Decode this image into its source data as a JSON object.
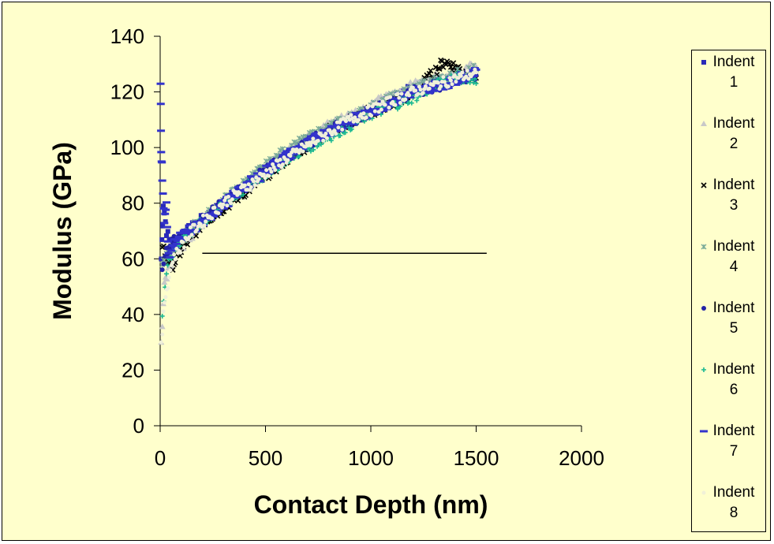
{
  "chart_data": {
    "type": "scatter",
    "title": "",
    "xlabel": "Contact Depth (nm)",
    "ylabel": "Modulus (GPa)",
    "xlim": [
      0,
      2000
    ],
    "ylim": [
      0,
      140
    ],
    "xticks": [
      "0",
      "500",
      "1000",
      "1500",
      "2000"
    ],
    "yticks": [
      "0",
      "20",
      "40",
      "60",
      "80",
      "100",
      "120",
      "140"
    ],
    "legend_position": "right",
    "grid": false,
    "series": [
      {
        "name": "Indent 1",
        "color": "#2a2ab8",
        "marker": "square",
        "x": [
          5,
          15,
          30,
          50,
          100,
          200,
          400,
          600,
          800,
          1000,
          1200,
          1400,
          1500
        ],
        "y": [
          60,
          80,
          70,
          65,
          68,
          74,
          85,
          97,
          106,
          113,
          121,
          125,
          128
        ]
      },
      {
        "name": "Indent 2",
        "color": "#c8c8c8",
        "marker": "triangle",
        "x": [
          5,
          20,
          50,
          100,
          200,
          400,
          600,
          800,
          1000,
          1200,
          1400,
          1500
        ],
        "y": [
          30,
          50,
          58,
          64,
          73,
          86,
          98,
          108,
          115,
          122,
          127,
          129
        ]
      },
      {
        "name": "Indent 3",
        "color": "#000000",
        "marker": "x",
        "x": [
          10,
          30,
          60,
          100,
          200,
          400,
          600,
          800,
          1000,
          1200,
          1350,
          1500
        ],
        "y": [
          65,
          60,
          58,
          63,
          73,
          84,
          96,
          106,
          113,
          119,
          131,
          125
        ]
      },
      {
        "name": "Indent 4",
        "color": "#7aaa98",
        "marker": "star",
        "x": [
          10,
          30,
          60,
          100,
          200,
          400,
          600,
          800,
          1000,
          1200,
          1400,
          1500
        ],
        "y": [
          58,
          60,
          64,
          67,
          74,
          87,
          99,
          107,
          114,
          121,
          126,
          128
        ]
      },
      {
        "name": "Indent 5",
        "color": "#2323a6",
        "marker": "circle",
        "x": [
          10,
          30,
          60,
          100,
          200,
          400,
          600,
          800,
          1000,
          1200,
          1400,
          1500
        ],
        "y": [
          55,
          62,
          66,
          68,
          74,
          86,
          97,
          106,
          113,
          120,
          124,
          126
        ]
      },
      {
        "name": "Indent 6",
        "color": "#1bb891",
        "marker": "plus",
        "x": [
          10,
          30,
          60,
          100,
          200,
          400,
          600,
          800,
          1000,
          1200,
          1400,
          1500
        ],
        "y": [
          40,
          55,
          62,
          67,
          73,
          85,
          96,
          104,
          112,
          118,
          126,
          123
        ]
      },
      {
        "name": "Indent 7",
        "color": "#3333cc",
        "marker": "dash",
        "x": [
          2,
          5,
          10,
          20,
          30,
          40,
          60,
          100,
          200,
          400,
          600,
          800,
          1000,
          1200,
          1400,
          1500
        ],
        "y": [
          123,
          100,
          90,
          72,
          80,
          60,
          65,
          68,
          73,
          86,
          97,
          106,
          113,
          120,
          124,
          128
        ]
      },
      {
        "name": "Indent 8",
        "color": "#f0f0d8",
        "marker": "dot",
        "x": [
          5,
          20,
          60,
          150,
          300,
          600,
          900,
          1200,
          1500
        ],
        "y": [
          28,
          45,
          60,
          70,
          80,
          96,
          110,
          120,
          127
        ]
      }
    ],
    "annotations": [
      {
        "type": "line",
        "x": [
          200,
          1550
        ],
        "y": [
          62,
          62
        ],
        "color": "#000000"
      }
    ]
  }
}
